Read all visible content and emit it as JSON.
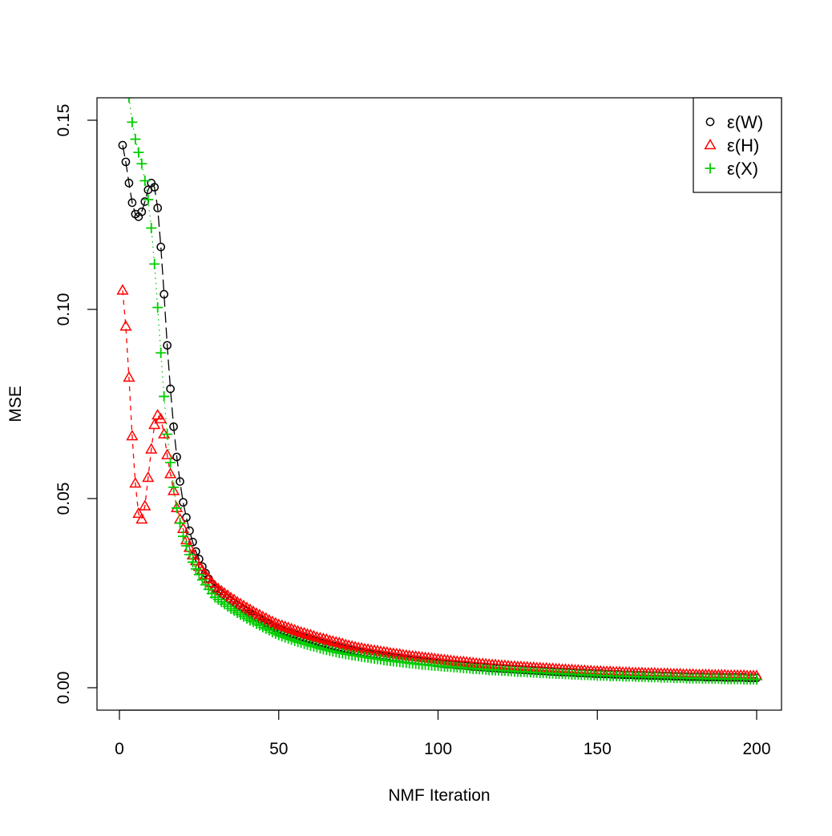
{
  "chart_data": {
    "type": "scatter",
    "title": "",
    "xlabel": "NMF Iteration",
    "ylabel": "MSE",
    "xlim": [
      0,
      200
    ],
    "ylim": [
      0,
      0.155
    ],
    "x_ticks": [
      "0",
      "50",
      "100",
      "150",
      "200"
    ],
    "y_ticks": [
      "0.00",
      "0.05",
      "0.10",
      "0.15"
    ],
    "grid": false,
    "legend_position": "top-right",
    "x_start": 1,
    "series": [
      {
        "name": "ε(W)",
        "color": "#000000",
        "marker": "circle",
        "line": "longdash",
        "values": [
          0.1434,
          0.139,
          0.1334,
          0.1282,
          0.1252,
          0.1245,
          0.1258,
          0.1285,
          0.1316,
          0.1334,
          0.1323,
          0.1268,
          0.1165,
          0.104,
          0.0905,
          0.079,
          0.069,
          0.061,
          0.0545,
          0.049,
          0.045,
          0.0415,
          0.0385,
          0.036,
          0.034,
          0.032,
          0.0303,
          0.0288,
          0.0275,
          0.0263,
          0.0256,
          0.0249,
          0.0243,
          0.0236,
          0.023,
          0.0224,
          0.0218,
          0.0213,
          0.0207,
          0.0202,
          0.0196,
          0.0191,
          0.0186,
          0.0182,
          0.0177,
          0.0172,
          0.0168,
          0.0163,
          0.0159,
          0.0155,
          0.0152,
          0.0149,
          0.0146,
          0.0143,
          0.0141,
          0.0138,
          0.0135,
          0.0133,
          0.013,
          0.0128,
          0.0125,
          0.0123,
          0.012,
          0.0118,
          0.0116,
          0.0113,
          0.0111,
          0.0109,
          0.0107,
          0.0105,
          0.0103,
          0.0101,
          0.0099,
          0.0097,
          0.0095,
          0.0094,
          0.0092,
          0.0091,
          0.0089,
          0.0088,
          0.0087,
          0.0085,
          0.0084,
          0.0083,
          0.0081,
          0.008,
          0.0079,
          0.0078,
          0.0076,
          0.0075,
          0.0074,
          0.0073,
          0.0072,
          0.0071,
          0.007,
          0.0069,
          0.0068,
          0.0067,
          0.0066,
          0.0065,
          0.0064,
          0.0063,
          0.0062,
          0.0062,
          0.0061,
          0.006,
          0.0059,
          0.0059,
          0.0058,
          0.0057,
          0.0056,
          0.0056,
          0.0055,
          0.0054,
          0.0054,
          0.0053,
          0.0052,
          0.0052,
          0.0051,
          0.0051,
          0.005,
          0.005,
          0.0049,
          0.0049,
          0.0048,
          0.0048,
          0.0047,
          0.0047,
          0.0046,
          0.0046,
          0.0045,
          0.0045,
          0.0044,
          0.0044,
          0.0043,
          0.0043,
          0.0042,
          0.0042,
          0.0041,
          0.0041,
          0.0041,
          0.004,
          0.004,
          0.0039,
          0.0039,
          0.0039,
          0.0038,
          0.0038,
          0.0037,
          0.0037,
          0.0037,
          0.0036,
          0.0036,
          0.0036,
          0.0035,
          0.0035,
          0.0035,
          0.0034,
          0.0034,
          0.0034,
          0.0034,
          0.0033,
          0.0033,
          0.0033,
          0.0033,
          0.0032,
          0.0032,
          0.0032,
          0.0032,
          0.0031,
          0.0031,
          0.0031,
          0.0031,
          0.003,
          0.003,
          0.003,
          0.003,
          0.0029,
          0.0029,
          0.0029,
          0.0029,
          0.0029,
          0.0029,
          0.0028,
          0.0028,
          0.0028,
          0.0028,
          0.0028,
          0.0028,
          0.0027,
          0.0027,
          0.0027,
          0.0027,
          0.0027,
          0.0027,
          0.0027,
          0.0026,
          0.0026,
          0.0026,
          0.0026
        ]
      },
      {
        "name": "ε(H)",
        "color": "#ff0000",
        "marker": "triangle",
        "line": "dashed",
        "values": [
          0.105,
          0.0955,
          0.082,
          0.0665,
          0.054,
          0.046,
          0.0445,
          0.048,
          0.0555,
          0.063,
          0.0695,
          0.072,
          0.071,
          0.067,
          0.0615,
          0.0565,
          0.052,
          0.0475,
          0.0445,
          0.042,
          0.039,
          0.037,
          0.035,
          0.0335,
          0.032,
          0.031,
          0.0298,
          0.0287,
          0.0277,
          0.0268,
          0.0261,
          0.0255,
          0.0249,
          0.0243,
          0.0237,
          0.0232,
          0.0226,
          0.0221,
          0.0216,
          0.0211,
          0.0206,
          0.0201,
          0.0196,
          0.0192,
          0.0187,
          0.0183,
          0.0178,
          0.0174,
          0.017,
          0.0166,
          0.0164,
          0.0161,
          0.0158,
          0.0155,
          0.0152,
          0.0149,
          0.0146,
          0.0144,
          0.0141,
          0.0139,
          0.0136,
          0.0133,
          0.0131,
          0.0129,
          0.0127,
          0.0124,
          0.0122,
          0.012,
          0.0118,
          0.0116,
          0.0113,
          0.0111,
          0.0109,
          0.0107,
          0.0105,
          0.0104,
          0.0102,
          0.0101,
          0.0099,
          0.0098,
          0.0097,
          0.0095,
          0.0094,
          0.0093,
          0.0091,
          0.009,
          0.0089,
          0.0088,
          0.0086,
          0.0085,
          0.0084,
          0.0083,
          0.0082,
          0.0081,
          0.008,
          0.0079,
          0.0078,
          0.0077,
          0.0076,
          0.0075,
          0.0074,
          0.0073,
          0.0072,
          0.0071,
          0.007,
          0.0069,
          0.0068,
          0.0068,
          0.0067,
          0.0066,
          0.0065,
          0.0064,
          0.0063,
          0.0063,
          0.0062,
          0.0061,
          0.006,
          0.006,
          0.0059,
          0.0058,
          0.0058,
          0.0057,
          0.0056,
          0.0056,
          0.0055,
          0.0055,
          0.0054,
          0.0054,
          0.0053,
          0.0053,
          0.0052,
          0.0052,
          0.0051,
          0.0051,
          0.005,
          0.005,
          0.0049,
          0.0049,
          0.0048,
          0.0048,
          0.0047,
          0.0047,
          0.0046,
          0.0046,
          0.0045,
          0.0045,
          0.0044,
          0.0044,
          0.0043,
          0.0043,
          0.0043,
          0.0042,
          0.0042,
          0.0042,
          0.0041,
          0.0041,
          0.0041,
          0.004,
          0.004,
          0.004,
          0.0039,
          0.0039,
          0.0039,
          0.0039,
          0.0038,
          0.0038,
          0.0038,
          0.0038,
          0.0037,
          0.0037,
          0.0037,
          0.0037,
          0.0036,
          0.0036,
          0.0036,
          0.0036,
          0.0035,
          0.0035,
          0.0035,
          0.0035,
          0.0034,
          0.0034,
          0.0034,
          0.0034,
          0.0034,
          0.0033,
          0.0033,
          0.0033,
          0.0033,
          0.0033,
          0.0032,
          0.0032,
          0.0032,
          0.0032,
          0.0032,
          0.0032,
          0.0031,
          0.0031,
          0.0031,
          0.0031
        ]
      },
      {
        "name": "ε(X)",
        "color": "#00cd00",
        "marker": "plus",
        "line": "dotted",
        "values": [
          null,
          null,
          0.156,
          0.1495,
          0.145,
          0.1415,
          0.1385,
          0.134,
          0.129,
          0.1215,
          0.112,
          0.1005,
          0.0885,
          0.077,
          0.067,
          0.0595,
          0.053,
          0.0475,
          0.0435,
          0.04,
          0.0375,
          0.0352,
          0.0332,
          0.0314,
          0.0299,
          0.0285,
          0.0272,
          0.026,
          0.0249,
          0.0239,
          0.0233,
          0.0227,
          0.0221,
          0.0215,
          0.0209,
          0.0204,
          0.0198,
          0.0193,
          0.0188,
          0.0183,
          0.0178,
          0.0174,
          0.0169,
          0.0165,
          0.016,
          0.0156,
          0.0152,
          0.0147,
          0.0143,
          0.0139,
          0.0136,
          0.0133,
          0.013,
          0.0127,
          0.0124,
          0.0121,
          0.0119,
          0.0116,
          0.0114,
          0.0111,
          0.0109,
          0.0107,
          0.0104,
          0.0102,
          0.01,
          0.0098,
          0.0096,
          0.0094,
          0.0092,
          0.0091,
          0.0089,
          0.0088,
          0.0086,
          0.0085,
          0.0084,
          0.0082,
          0.0081,
          0.008,
          0.0078,
          0.0077,
          0.0076,
          0.0075,
          0.0073,
          0.0072,
          0.0071,
          0.007,
          0.0069,
          0.0068,
          0.0067,
          0.0066,
          0.0065,
          0.0064,
          0.0063,
          0.0062,
          0.0061,
          0.0061,
          0.006,
          0.0059,
          0.0058,
          0.0058,
          0.0057,
          0.0056,
          0.0056,
          0.0055,
          0.0054,
          0.0054,
          0.0053,
          0.0052,
          0.0052,
          0.0051,
          0.005,
          0.005,
          0.0049,
          0.0049,
          0.0048,
          0.0047,
          0.0047,
          0.0046,
          0.0046,
          0.0045,
          0.0045,
          0.0044,
          0.0044,
          0.0043,
          0.0042,
          0.0042,
          0.0042,
          0.0041,
          0.0041,
          0.004,
          0.004,
          0.0039,
          0.0039,
          0.0039,
          0.0038,
          0.0038,
          0.0037,
          0.0037,
          0.0037,
          0.0036,
          0.0036,
          0.0035,
          0.0035,
          0.0035,
          0.0034,
          0.0034,
          0.0034,
          0.0033,
          0.0033,
          0.0032,
          0.0032,
          0.0032,
          0.0032,
          0.0031,
          0.0031,
          0.0031,
          0.0031,
          0.003,
          0.003,
          0.003,
          0.003,
          0.0029,
          0.0029,
          0.0029,
          0.0029,
          0.0028,
          0.0028,
          0.0028,
          0.0028,
          0.0027,
          0.0027,
          0.0027,
          0.0027,
          0.0026,
          0.0026,
          0.0026,
          0.0026,
          0.0025,
          0.0025,
          0.0025,
          0.0025,
          0.0025,
          0.0024,
          0.0024,
          0.0024,
          0.0024,
          0.0024,
          0.0024,
          0.0023,
          0.0023,
          0.0023,
          0.0023,
          0.0023,
          0.0023,
          0.0023,
          0.0022,
          0.0022,
          0.0022,
          0.0022,
          0.0022
        ]
      }
    ]
  }
}
